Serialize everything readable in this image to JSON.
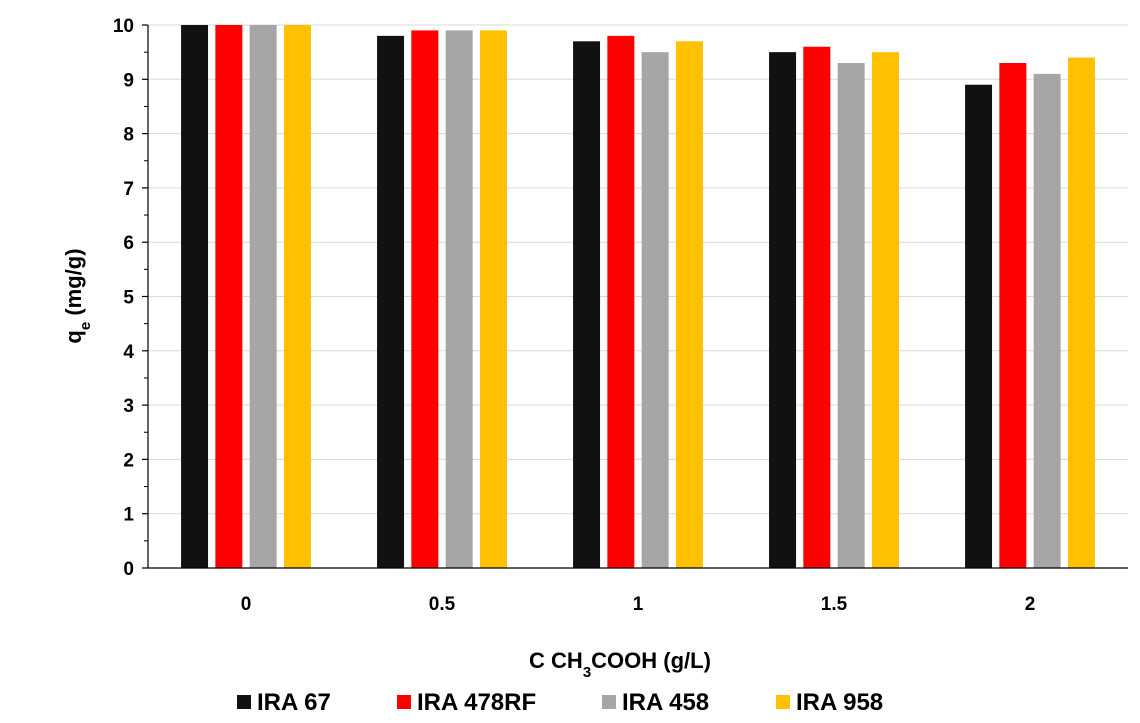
{
  "chart_data": {
    "type": "bar",
    "categories": [
      "0",
      "0.5",
      "1",
      "1.5",
      "2"
    ],
    "series": [
      {
        "name": "IRA 67",
        "color": "#111111",
        "values": [
          10.0,
          9.8,
          9.7,
          9.5,
          8.9
        ]
      },
      {
        "name": "IRA 478RF",
        "color": "#ff0000",
        "values": [
          10.0,
          9.9,
          9.8,
          9.6,
          9.3
        ]
      },
      {
        "name": "IRA 458",
        "color": "#a6a6a6",
        "values": [
          10.0,
          9.9,
          9.5,
          9.3,
          9.1
        ]
      },
      {
        "name": "IRA 958",
        "color": "#ffc000",
        "values": [
          10.0,
          9.9,
          9.7,
          9.5,
          9.4
        ]
      }
    ],
    "yticks": [
      "0",
      "1",
      "2",
      "3",
      "4",
      "5",
      "6",
      "7",
      "8",
      "9",
      "10"
    ],
    "ylim": [
      0,
      10
    ],
    "xlabel": {
      "main": "C CH",
      "sub": "3",
      "rest": "COOH (g/L)"
    },
    "ylabel": {
      "main": "q",
      "sub": "e",
      "rest": " (mg/g)"
    },
    "grid": "horizontal",
    "grid_color": "#d9d9d9",
    "legend_position": "bottom"
  }
}
